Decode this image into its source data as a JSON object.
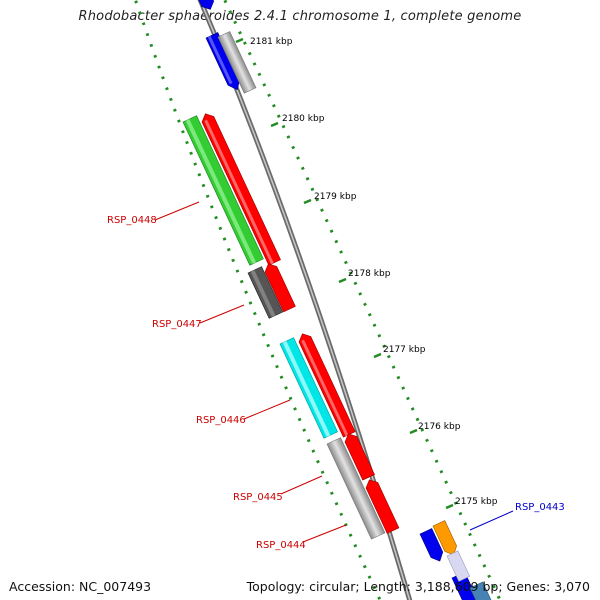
{
  "title": "Rhodobacter sphaeroides 2.4.1 chromosome 1, complete genome",
  "footer": {
    "accession": "Accession: NC_007493",
    "summary": "Topology: circular; Length: 3,188,609 bp; Genes: 3,070"
  },
  "colors": {
    "backbone": "#808080",
    "tick": "#228b22",
    "label_red": "#cc0000",
    "label_blue": "#0000cc"
  },
  "kbp_labels": [
    "2181 kbp",
    "2180 kbp",
    "2179 kbp",
    "2178 kbp",
    "2177 kbp",
    "2176 kbp",
    "2175 kbp"
  ],
  "gene_labels": [
    {
      "name": "RSP_0448",
      "color": "#cc0000"
    },
    {
      "name": "RSP_0447",
      "color": "#cc0000"
    },
    {
      "name": "RSP_0446",
      "color": "#cc0000"
    },
    {
      "name": "RSP_0445",
      "color": "#cc0000"
    },
    {
      "name": "RSP_0444",
      "color": "#cc0000"
    },
    {
      "name": "RSP_0443",
      "color": "#0000cc"
    }
  ],
  "feature_colors": {
    "inner_genes": [
      "#0000ff",
      "#33cc33",
      "#555555",
      "#00e5e5",
      "#bdbdbd",
      "#0000ff"
    ],
    "outer_genes": [
      "#bdbdbd",
      "#ff0000",
      "#ff0000",
      "#ff0000",
      "#ff0000",
      "#ff0000",
      "#ff9900"
    ]
  }
}
